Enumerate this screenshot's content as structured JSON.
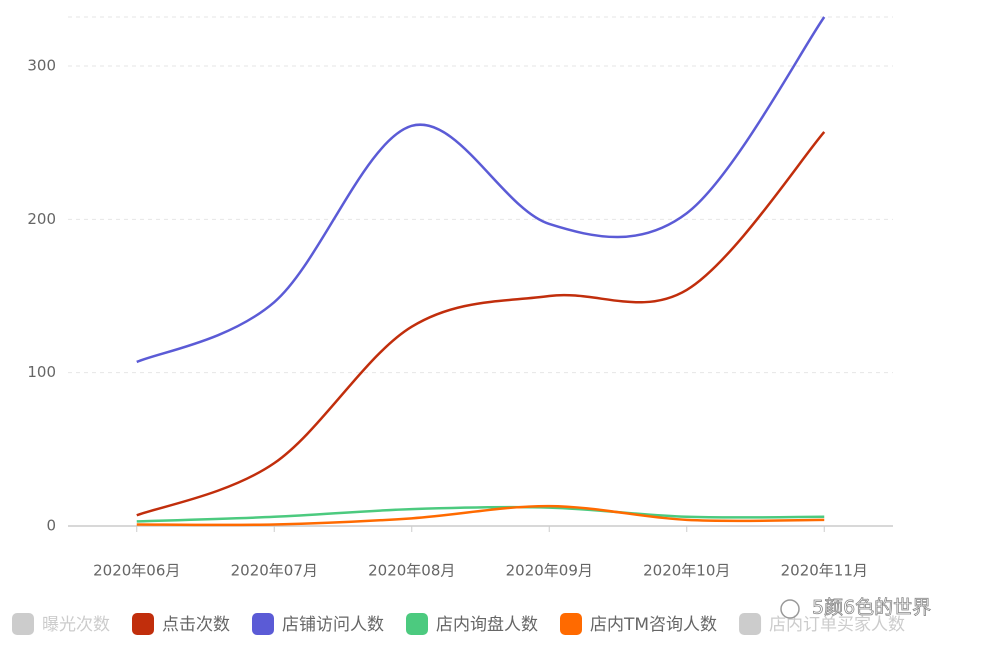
{
  "chart_data": {
    "type": "line",
    "categories": [
      "2020年06月",
      "2020年07月",
      "2020年08月",
      "2020年09月",
      "2020年10月",
      "2020年11月"
    ],
    "series": [
      {
        "name": "曝光次数",
        "color": "#c4c4c4",
        "inactive": true
      },
      {
        "name": "点击次数",
        "color": "#c12e0c",
        "values": [
          7,
          41,
          130,
          150,
          154,
          257
        ]
      },
      {
        "name": "店铺访问人数",
        "color": "#5b5bd6",
        "values": [
          107,
          146,
          261,
          197,
          204,
          332
        ]
      },
      {
        "name": "店内询盘人数",
        "color": "#4cca7f",
        "values": [
          3,
          6,
          11,
          12,
          6,
          6
        ]
      },
      {
        "name": "店内TM咨询人数",
        "color": "#ff6a00",
        "values": [
          1,
          1,
          5,
          13,
          4,
          4
        ]
      },
      {
        "name": "店内订单买家人数",
        "color": "#c4c4c4",
        "inactive": true
      }
    ],
    "ylim": [
      0,
      332
    ],
    "yticks": [
      0,
      100,
      200,
      300
    ],
    "grid": true,
    "smooth": true,
    "legend": "bottom",
    "watermark": "5颜6色的世界"
  }
}
